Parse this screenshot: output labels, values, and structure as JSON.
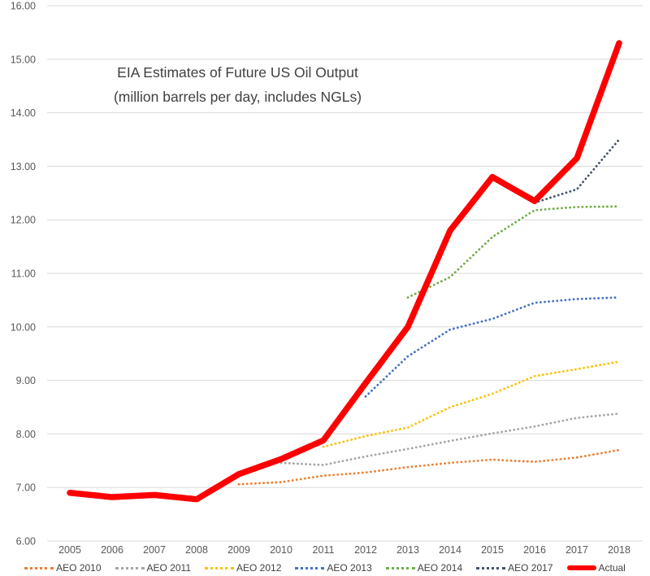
{
  "chart_data": {
    "type": "line",
    "title": "EIA Estimates of Future US Oil Output",
    "subtitle": "(million barrels per day, includes NGLs)",
    "xlabel": "",
    "ylabel": "",
    "ylim": [
      6,
      16
    ],
    "ytick_step": 1,
    "y_tick_labels": [
      "16.00",
      "15.00",
      "14.00",
      "13.00",
      "12.00",
      "11.00",
      "10.00",
      "9.00",
      "8.00",
      "7.00",
      "6.00"
    ],
    "x_years": [
      2005,
      2006,
      2007,
      2008,
      2009,
      2010,
      2011,
      2012,
      2013,
      2014,
      2015,
      2016,
      2017,
      2018
    ],
    "x_tick_labels": [
      "2005",
      "2006",
      "2007",
      "2008",
      "2009",
      "2010",
      "2011",
      "2012",
      "2013",
      "2014",
      "2015",
      "2016",
      "2017",
      "2018"
    ],
    "grid": "horizontal",
    "gridline_color": "#d9d9d9",
    "axis_text_color": "#595959",
    "title_color": "#404040",
    "legend_position": "bottom",
    "series": [
      {
        "name": "AEO 2010",
        "color": "#ED7D31",
        "style": "dotted",
        "years": [
          2009,
          2010,
          2011,
          2012,
          2013,
          2014,
          2015,
          2016,
          2017,
          2018
        ],
        "values": [
          7.06,
          7.1,
          7.22,
          7.28,
          7.38,
          7.46,
          7.52,
          7.48,
          7.56,
          7.7
        ]
      },
      {
        "name": "AEO 2011",
        "color": "#A5A5A5",
        "style": "dotted",
        "years": [
          2010,
          2011,
          2012,
          2013,
          2014,
          2015,
          2016,
          2017,
          2018
        ],
        "values": [
          7.46,
          7.42,
          7.58,
          7.72,
          7.87,
          8.01,
          8.14,
          8.3,
          8.38
        ]
      },
      {
        "name": "AEO 2012",
        "color": "#FFC000",
        "style": "dotted",
        "years": [
          2011,
          2012,
          2013,
          2014,
          2015,
          2016,
          2017,
          2018
        ],
        "values": [
          7.76,
          7.96,
          8.12,
          8.5,
          8.75,
          9.08,
          9.21,
          9.35
        ]
      },
      {
        "name": "AEO 2013",
        "color": "#4472C4",
        "style": "dotted",
        "years": [
          2012,
          2013,
          2014,
          2015,
          2016,
          2017,
          2018
        ],
        "values": [
          8.7,
          9.45,
          9.95,
          10.15,
          10.45,
          10.52,
          10.55
        ]
      },
      {
        "name": "AEO 2014",
        "color": "#70AD47",
        "style": "dotted",
        "years": [
          2013,
          2014,
          2015,
          2016,
          2017,
          2018
        ],
        "values": [
          10.55,
          10.93,
          11.68,
          12.18,
          12.24,
          12.25
        ]
      },
      {
        "name": "AEO 2017",
        "color": "#44546A",
        "style": "dotted",
        "years": [
          2016,
          2017,
          2018
        ],
        "values": [
          12.32,
          12.57,
          13.5
        ]
      },
      {
        "name": "Actual",
        "color": "#FF0000",
        "style": "solid",
        "years": [
          2005,
          2006,
          2007,
          2008,
          2009,
          2010,
          2011,
          2012,
          2013,
          2014,
          2015,
          2016,
          2017,
          2018
        ],
        "values": [
          6.9,
          6.82,
          6.86,
          6.78,
          7.25,
          7.53,
          7.88,
          8.95,
          10.0,
          11.8,
          12.8,
          12.35,
          13.15,
          15.3
        ]
      }
    ]
  }
}
